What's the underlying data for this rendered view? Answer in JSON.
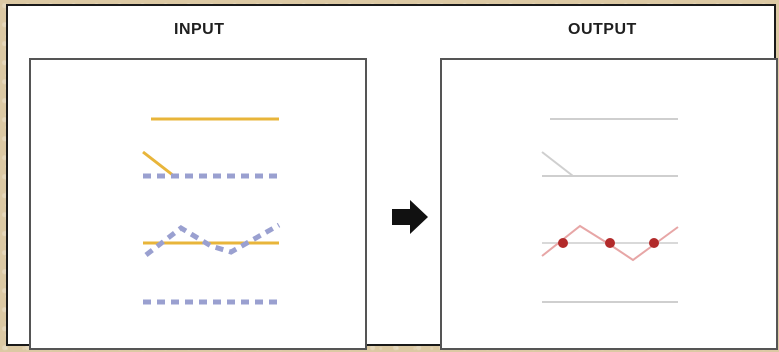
{
  "headings": {
    "input": "INPUT",
    "output": "OUTPUT"
  },
  "colors": {
    "input_line": "#e8b53a",
    "dashed_line": "#9aa0d0",
    "output_line": "#cfcfcf",
    "output_highlight": "#e7a6a6",
    "intersection_point": "#b22a2a",
    "arrow": "#111111"
  },
  "icons": {
    "transform_arrow": "right-arrow-icon"
  }
}
